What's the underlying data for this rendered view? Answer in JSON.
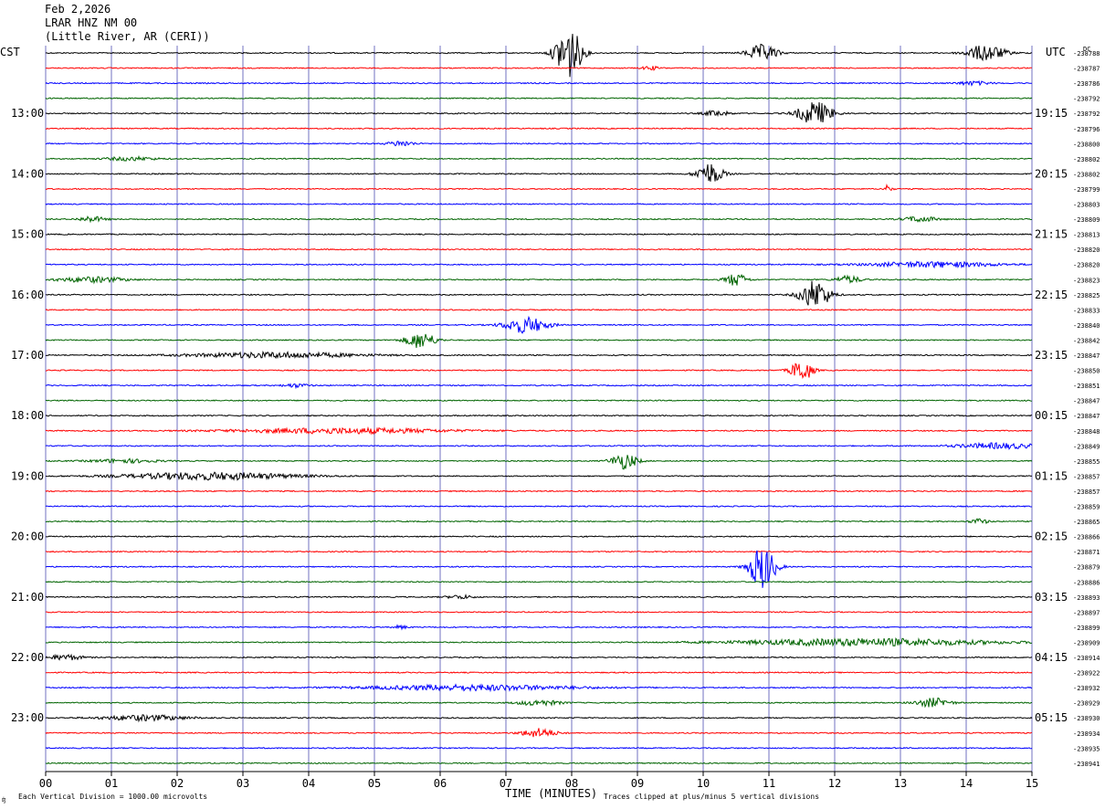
{
  "header": {
    "date": "Feb 2,2026",
    "station": "LRAR HNZ NM 00",
    "location": "(Little River, AR (CERI))"
  },
  "left_timezone": "CST",
  "right_timezone": "UTC",
  "dc_label": "DC",
  "footnote_left": "Each Vertical Division = 1000.00 microvolts",
  "footnote_right": "Traces clipped at plus/minus 5 vertical divisions",
  "colors": {
    "line1": "#000000",
    "line2": "#ff0000",
    "line3": "#0000ff",
    "line4": "#006400",
    "grid": "#7070c0"
  },
  "chart_data": {
    "type": "line",
    "title": "LRAR HNZ NM 00",
    "xlabel": "TIME (MINUTES)",
    "ylabel": "",
    "xlim": [
      0,
      15
    ],
    "x_ticks": [
      "00",
      "01",
      "02",
      "03",
      "04",
      "05",
      "06",
      "07",
      "08",
      "09",
      "10",
      "11",
      "12",
      "13",
      "14",
      "15"
    ],
    "left_hour_labels": [
      "13:00",
      "14:00",
      "15:00",
      "16:00",
      "17:00",
      "18:00",
      "19:00",
      "20:00",
      "21:00",
      "22:00",
      "23:00"
    ],
    "right_hour_labels": [
      "19:15",
      "20:15",
      "21:15",
      "22:15",
      "23:15",
      "00:15",
      "01:15",
      "02:15",
      "03:15",
      "04:15",
      "05:15"
    ],
    "trace_offsets": [
      "-238788",
      "-238787",
      "-238786",
      "-238792",
      "-238792",
      "-238796",
      "-238800",
      "-238802",
      "-238802",
      "-238799",
      "-238803",
      "-238809",
      "-238813",
      "-238820",
      "-238820",
      "-238823",
      "-238825",
      "-238833",
      "-238840",
      "-238842",
      "-238847",
      "-238850",
      "-238851",
      "-238847",
      "-238847",
      "-238848",
      "-238849",
      "-238855",
      "-238857",
      "-238857",
      "-238859",
      "-238865",
      "-238866",
      "-238871",
      "-238879",
      "-238886",
      "-238893",
      "-238897",
      "-238899",
      "-238909",
      "-238914",
      "-238922",
      "-238932",
      "-238929",
      "-238930",
      "-238934",
      "-238935",
      "-238941"
    ],
    "events": [
      {
        "trace": 0,
        "minute": 7.95,
        "amp": 30,
        "dur": 0.3
      },
      {
        "trace": 0,
        "minute": 10.9,
        "amp": 9,
        "dur": 0.35
      },
      {
        "trace": 0,
        "minute": 14.3,
        "amp": 9,
        "dur": 0.45
      },
      {
        "trace": 1,
        "minute": 9.2,
        "amp": 2,
        "dur": 0.2
      },
      {
        "trace": 2,
        "minute": 14.1,
        "amp": 2,
        "dur": 0.4
      },
      {
        "trace": 4,
        "minute": 11.7,
        "amp": 13,
        "dur": 0.4
      },
      {
        "trace": 4,
        "minute": 10.2,
        "amp": 3,
        "dur": 0.3
      },
      {
        "trace": 6,
        "minute": 5.4,
        "amp": 3,
        "dur": 0.3
      },
      {
        "trace": 7,
        "minute": 1.3,
        "amp": 2,
        "dur": 0.6
      },
      {
        "trace": 8,
        "minute": 10.1,
        "amp": 12,
        "dur": 0.3
      },
      {
        "trace": 9,
        "minute": 12.8,
        "amp": 4,
        "dur": 0.1
      },
      {
        "trace": 11,
        "minute": 0.7,
        "amp": 3,
        "dur": 0.3
      },
      {
        "trace": 11,
        "minute": 13.3,
        "amp": 3,
        "dur": 0.4
      },
      {
        "trace": 14,
        "minute": 13.5,
        "amp": 3,
        "dur": 1.5
      },
      {
        "trace": 15,
        "minute": 10.5,
        "amp": 7,
        "dur": 0.25
      },
      {
        "trace": 15,
        "minute": 12.2,
        "amp": 4,
        "dur": 0.3
      },
      {
        "trace": 15,
        "minute": 0.7,
        "amp": 3,
        "dur": 0.8
      },
      {
        "trace": 16,
        "minute": 11.7,
        "amp": 16,
        "dur": 0.35
      },
      {
        "trace": 18,
        "minute": 7.3,
        "amp": 9,
        "dur": 0.5
      },
      {
        "trace": 19,
        "minute": 5.7,
        "amp": 9,
        "dur": 0.35
      },
      {
        "trace": 20,
        "minute": 3.5,
        "amp": 3,
        "dur": 2.0
      },
      {
        "trace": 21,
        "minute": 11.5,
        "amp": 12,
        "dur": 0.25
      },
      {
        "trace": 22,
        "minute": 3.8,
        "amp": 2,
        "dur": 0.3
      },
      {
        "trace": 25,
        "minute": 4.5,
        "amp": 3,
        "dur": 2.5
      },
      {
        "trace": 26,
        "minute": 14.5,
        "amp": 3,
        "dur": 1.0
      },
      {
        "trace": 27,
        "minute": 8.8,
        "amp": 9,
        "dur": 0.3
      },
      {
        "trace": 27,
        "minute": 1.2,
        "amp": 2,
        "dur": 0.8
      },
      {
        "trace": 28,
        "minute": 2.5,
        "amp": 4,
        "dur": 2.0
      },
      {
        "trace": 31,
        "minute": 14.2,
        "amp": 3,
        "dur": 0.2
      },
      {
        "trace": 34,
        "minute": 10.9,
        "amp": 24,
        "dur": 0.3
      },
      {
        "trace": 36,
        "minute": 6.3,
        "amp": 2,
        "dur": 0.3
      },
      {
        "trace": 38,
        "minute": 5.4,
        "amp": 2,
        "dur": 0.15
      },
      {
        "trace": 39,
        "minute": 12.5,
        "amp": 4,
        "dur": 3.0
      },
      {
        "trace": 40,
        "minute": 0.3,
        "amp": 3,
        "dur": 0.4
      },
      {
        "trace": 42,
        "minute": 6.5,
        "amp": 3,
        "dur": 2.5
      },
      {
        "trace": 43,
        "minute": 13.5,
        "amp": 5,
        "dur": 0.4
      },
      {
        "trace": 43,
        "minute": 7.5,
        "amp": 3,
        "dur": 0.5
      },
      {
        "trace": 44,
        "minute": 1.5,
        "amp": 3,
        "dur": 1.0
      },
      {
        "trace": 45,
        "minute": 7.5,
        "amp": 5,
        "dur": 0.4
      }
    ]
  }
}
